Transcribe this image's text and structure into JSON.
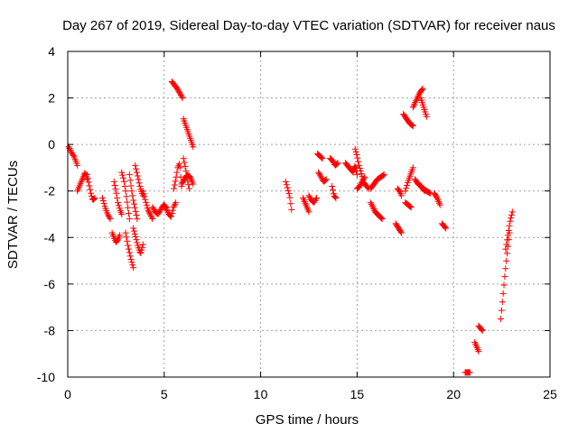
{
  "chart_data": {
    "type": "scatter",
    "title": "Day 267 of 2019, Sidereal Day-to-day VTEC variation (SDTVAR) for receiver naus",
    "xlabel": "GPS time / hours",
    "ylabel": "SDTVAR / TECUs",
    "xlim": [
      0,
      25
    ],
    "ylim": [
      -10,
      4
    ],
    "xticks": [
      0,
      5,
      10,
      15,
      20,
      25
    ],
    "yticks": [
      -10,
      -8,
      -6,
      -4,
      -2,
      0,
      2,
      4
    ],
    "grid": true,
    "marker": "plus",
    "color": "#ff0000",
    "series": [
      {
        "name": "naus",
        "segments": [
          {
            "x0": 0.05,
            "x1": 0.5,
            "y": [
              -0.1,
              -0.25,
              -0.4,
              -0.5,
              -0.7,
              -0.9
            ]
          },
          {
            "x0": 0.5,
            "x1": 1.0,
            "y": [
              -2.0,
              -1.8,
              -1.6,
              -1.4,
              -1.2,
              -1.5
            ]
          },
          {
            "x0": 1.0,
            "x1": 1.4,
            "y": [
              -1.3,
              -1.7,
              -2.1,
              -2.4,
              -2.3
            ]
          },
          {
            "x0": 1.8,
            "x1": 2.2,
            "y": [
              -2.3,
              -2.7,
              -3.0,
              -3.2
            ]
          },
          {
            "x0": 2.3,
            "x1": 2.7,
            "y": [
              -3.8,
              -4.0,
              -4.2,
              -4.1,
              -3.9
            ]
          },
          {
            "x0": 2.4,
            "x1": 2.8,
            "y": [
              -1.6,
              -2.0,
              -2.5,
              -2.8,
              -3.0
            ]
          },
          {
            "x0": 2.8,
            "x1": 3.2,
            "y": [
              -1.2,
              -1.5,
              -2.0,
              -2.6,
              -3.2
            ]
          },
          {
            "x0": 3.0,
            "x1": 3.4,
            "y": [
              -3.8,
              -4.4,
              -4.9,
              -5.3
            ]
          },
          {
            "x0": 3.2,
            "x1": 3.6,
            "y": [
              -1.3,
              -1.9,
              -2.4,
              -2.8,
              -3.2
            ]
          },
          {
            "x0": 3.4,
            "x1": 3.9,
            "y": [
              -3.6,
              -4.0,
              -4.4,
              -4.7,
              -4.3
            ]
          },
          {
            "x0": 3.5,
            "x1": 3.9,
            "y": [
              -0.9,
              -1.4,
              -1.9,
              -2.2
            ]
          },
          {
            "x0": 3.9,
            "x1": 4.4,
            "y": [
              -2.0,
              -2.4,
              -2.8,
              -3.0,
              -3.2
            ]
          },
          {
            "x0": 4.4,
            "x1": 5.1,
            "y": [
              -2.7,
              -2.9,
              -3.0,
              -2.8,
              -2.6,
              -2.7
            ]
          },
          {
            "x0": 5.0,
            "x1": 5.6,
            "y": [
              -2.6,
              -2.8,
              -3.0,
              -3.1,
              -2.7,
              -2.5
            ]
          },
          {
            "x0": 5.5,
            "x1": 5.9,
            "y": [
              -1.9,
              -1.5,
              -1.0,
              -0.8,
              -1.8
            ]
          },
          {
            "x0": 5.4,
            "x1": 5.95,
            "y": [
              2.7,
              2.55,
              2.4,
              2.2,
              2.0
            ]
          },
          {
            "x0": 6.0,
            "x1": 6.5,
            "y": [
              1.1,
              0.7,
              0.3,
              -0.1
            ]
          },
          {
            "x0": 6.0,
            "x1": 6.3,
            "y": [
              -0.6,
              -1.0,
              -1.5,
              -1.9
            ]
          },
          {
            "x0": 5.9,
            "x1": 6.5,
            "y": [
              -1.7,
              -1.5,
              -1.3,
              -1.4,
              -1.7
            ]
          },
          {
            "x0": 11.3,
            "x1": 11.6,
            "y": [
              -1.6,
              -1.9,
              -2.2,
              -2.8
            ]
          },
          {
            "x0": 12.2,
            "x1": 12.5,
            "y": [
              -2.3,
              -2.6,
              -2.9
            ]
          },
          {
            "x0": 12.5,
            "x1": 12.9,
            "y": [
              -2.2,
              -2.4,
              -2.5,
              -2.3
            ]
          },
          {
            "x0": 12.95,
            "x1": 13.2,
            "y": [
              -0.4,
              -0.6
            ]
          },
          {
            "x0": 13.0,
            "x1": 13.4,
            "y": [
              -1.2,
              -1.4,
              -1.6,
              -1.5
            ]
          },
          {
            "x0": 13.6,
            "x1": 14.0,
            "y": [
              -0.6,
              -0.7,
              -0.9,
              -0.8
            ]
          },
          {
            "x0": 13.7,
            "x1": 13.9,
            "y": [
              -1.8,
              -2.2,
              -2.3
            ]
          },
          {
            "x0": 14.4,
            "x1": 14.8,
            "y": [
              -0.8,
              -1.0,
              -1.2
            ]
          },
          {
            "x0": 14.8,
            "x1": 15.0,
            "y": [
              -1.1,
              -0.9,
              -1.3
            ]
          },
          {
            "x0": 14.9,
            "x1": 15.3,
            "y": [
              -0.2,
              -0.5,
              -0.9,
              -1.2,
              -1.5
            ]
          },
          {
            "x0": 15.0,
            "x1": 15.4,
            "y": [
              -1.9,
              -1.8,
              -1.6,
              -1.4
            ]
          },
          {
            "x0": 15.3,
            "x1": 15.6,
            "y": [
              -1.6,
              -1.9
            ]
          },
          {
            "x0": 15.7,
            "x1": 16.3,
            "y": [
              -2.5,
              -2.7,
              -2.9,
              -3.0,
              -3.1,
              -3.2
            ]
          },
          {
            "x0": 15.7,
            "x1": 16.4,
            "y": [
              -1.9,
              -1.7,
              -1.5,
              -1.4,
              -1.3
            ]
          },
          {
            "x0": 17.0,
            "x1": 17.3,
            "y": [
              -3.4,
              -3.6,
              -3.8
            ]
          },
          {
            "x0": 17.1,
            "x1": 17.3,
            "y": [
              -1.9,
              -2.0,
              -2.2
            ]
          },
          {
            "x0": 17.5,
            "x1": 17.8,
            "y": [
              -2.5,
              -2.7
            ]
          },
          {
            "x0": 17.5,
            "x1": 17.9,
            "y": [
              -2.0,
              -1.6,
              -1.3,
              -1.0
            ]
          },
          {
            "x0": 17.4,
            "x1": 17.9,
            "y": [
              1.3,
              1.1,
              0.9,
              0.8
            ]
          },
          {
            "x0": 17.9,
            "x1": 18.4,
            "y": [
              1.6,
              1.9,
              2.2,
              2.4
            ]
          },
          {
            "x0": 18.3,
            "x1": 18.6,
            "y": [
              2.0,
              1.6,
              1.2
            ]
          },
          {
            "x0": 18.0,
            "x1": 18.5,
            "y": [
              -1.5,
              -1.7,
              -1.8,
              -2.0
            ]
          },
          {
            "x0": 18.4,
            "x1": 18.8,
            "y": [
              -1.9,
              -2.1
            ]
          },
          {
            "x0": 19.0,
            "x1": 19.3,
            "y": [
              -2.1,
              -2.3,
              -2.6
            ]
          },
          {
            "x0": 19.4,
            "x1": 19.6,
            "y": [
              -3.4,
              -3.6
            ]
          },
          {
            "x0": 20.6,
            "x1": 20.85,
            "y": [
              -9.8,
              -9.8
            ]
          },
          {
            "x0": 21.1,
            "x1": 21.3,
            "y": [
              -8.5,
              -8.9
            ]
          },
          {
            "x0": 21.3,
            "x1": 21.5,
            "y": [
              -7.8,
              -8.0
            ]
          },
          {
            "x0": 22.45,
            "x1": 22.9,
            "y": [
              -7.5,
              -6.5,
              -5.5,
              -4.6,
              -3.8
            ]
          },
          {
            "x0": 22.7,
            "x1": 23.05,
            "y": [
              -4.5,
              -3.9,
              -3.3,
              -2.9
            ]
          }
        ]
      }
    ]
  }
}
